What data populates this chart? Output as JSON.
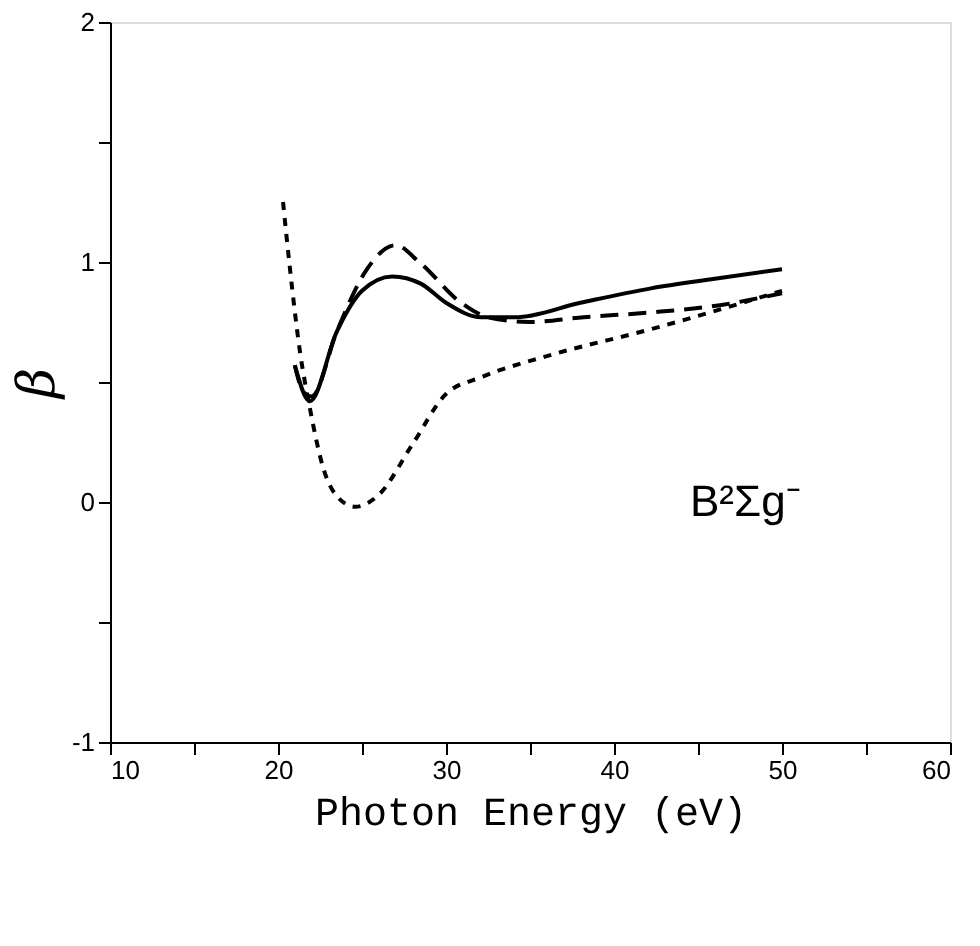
{
  "chart_data": {
    "type": "line",
    "xlabel": "Photon Energy (eV)",
    "ylabel": "β",
    "annotations": [
      "B²Σg⁻"
    ],
    "xlim": [
      10,
      60
    ],
    "ylim": [
      -1,
      2
    ],
    "xticks": [
      10,
      {
        "value": 15,
        "label": null
      },
      20,
      {
        "value": 25,
        "label": null
      },
      30,
      {
        "value": 35,
        "label": null
      },
      40,
      {
        "value": 45,
        "label": null
      },
      50,
      {
        "value": 55,
        "label": null
      },
      60
    ],
    "yticks": [
      -1,
      {
        "value": -0.5,
        "label": null
      },
      0,
      {
        "value": 0.5,
        "label": null
      },
      1,
      {
        "value": 1.5,
        "label": null
      },
      2
    ],
    "grid": false,
    "series": [
      {
        "color": "#000000",
        "line_style": "solid",
        "x": [
          21.0,
          21.9,
          23.5,
          25.0,
          26.8,
          28.5,
          30.0,
          32.1,
          34.1,
          38.0,
          42.2,
          46.0,
          50.0
        ],
        "values": [
          0.57,
          0.42,
          0.71,
          0.88,
          0.94,
          0.91,
          0.83,
          0.77,
          0.77,
          0.83,
          0.89,
          0.93,
          0.97
        ]
      },
      {
        "color": "#000000",
        "line_style": "dashed",
        "x": [
          21.0,
          21.5,
          22.0,
          23.5,
          25.2,
          27.0,
          28.4,
          30.9,
          32.5,
          34.9,
          38.2,
          42.2,
          46.3,
          50.0
        ],
        "values": [
          0.57,
          0.46,
          0.44,
          0.71,
          0.96,
          1.07,
          1.0,
          0.83,
          0.77,
          0.75,
          0.77,
          0.79,
          0.82,
          0.87
        ]
      },
      {
        "color": "#000000",
        "line_style": "dotted",
        "x": [
          20.3,
          20.7,
          21.3,
          21.9,
          22.7,
          23.7,
          24.6,
          26.0,
          28.0,
          30.0,
          32.1,
          36.1,
          42.2,
          50.0
        ],
        "values": [
          1.25,
          0.98,
          0.63,
          0.39,
          0.14,
          0.01,
          -0.02,
          0.03,
          0.24,
          0.45,
          0.52,
          0.61,
          0.72,
          0.88
        ]
      }
    ]
  }
}
